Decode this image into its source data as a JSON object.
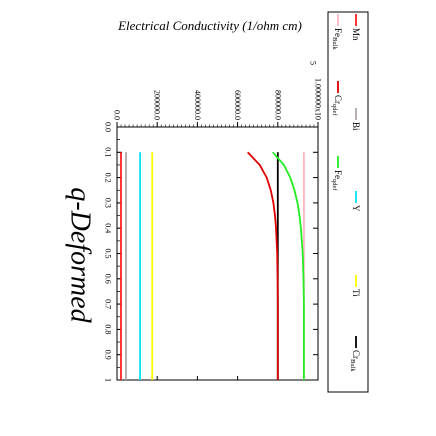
{
  "chart_data": {
    "type": "line",
    "ylabel": "Electrical Conductivity (1/ohm cm)",
    "xlabel": "q-Deformed",
    "xlim": [
      0.0,
      1.0
    ],
    "ylim": [
      0,
      1000000
    ],
    "x_ticks": [
      "0.0",
      "0.1",
      "0.2",
      "0.3",
      "0.4",
      "0.5",
      "0.6",
      "0.7",
      "0.8",
      "0.9",
      "1"
    ],
    "y_ticks": [
      "0.0",
      "200000.0",
      "400000.0",
      "600000.0",
      "800000.0",
      "1.000000x10",
      "5"
    ],
    "y_ticks_values": [
      0,
      200000,
      400000,
      600000,
      800000,
      1000000
    ],
    "legend_position": "right",
    "series": [
      {
        "name": "Mn",
        "label_sub": "",
        "color": "#ff2020",
        "kind": "const",
        "x": [
          0.1,
          1.0
        ],
        "y": [
          20000,
          20000
        ]
      },
      {
        "name": "Bi",
        "label_sub": "",
        "color": "#b0a8a8",
        "kind": "const",
        "x": [
          0.1,
          1.0
        ],
        "y": [
          45000,
          45000
        ]
      },
      {
        "name": "Y",
        "label_sub": "",
        "color": "#00e5ee",
        "kind": "const",
        "x": [
          0.1,
          1.0
        ],
        "y": [
          115000,
          115000
        ]
      },
      {
        "name": "Ti",
        "label_sub": "",
        "color": "#ffff00",
        "kind": "const",
        "x": [
          0.1,
          1.0
        ],
        "y": [
          175000,
          175000
        ]
      },
      {
        "name": "Cr",
        "label_sub": "Bulk",
        "color": "#000000",
        "kind": "const",
        "x": [
          0.1,
          1.0
        ],
        "y": [
          800000,
          800000
        ]
      },
      {
        "name": "Fe",
        "label_sub": "Bulk",
        "color": "#ffb6c1",
        "kind": "const",
        "x": [
          0.1,
          1.0
        ],
        "y": [
          930000,
          930000
        ]
      },
      {
        "name": "Cr",
        "label_sub": "qdef",
        "color": "#e00000",
        "kind": "curve",
        "x": [
          0.1,
          0.15,
          0.2,
          0.25,
          0.3,
          0.35,
          0.4,
          0.5,
          0.6,
          0.7,
          0.8,
          0.9,
          1.0
        ],
        "y": [
          650000,
          710000,
          745000,
          765000,
          778000,
          786000,
          791000,
          797000,
          799000,
          800000,
          800000,
          800000,
          800000
        ]
      },
      {
        "name": "Fe",
        "label_sub": "qdef",
        "color": "#22ee22",
        "kind": "curve",
        "x": [
          0.1,
          0.15,
          0.2,
          0.25,
          0.3,
          0.35,
          0.4,
          0.5,
          0.6,
          0.7,
          0.8,
          0.9,
          1.0
        ],
        "y": [
          775000,
          830000,
          862000,
          883000,
          898000,
          908000,
          915000,
          924000,
          928000,
          930000,
          930000,
          930000,
          930000
        ]
      }
    ]
  }
}
